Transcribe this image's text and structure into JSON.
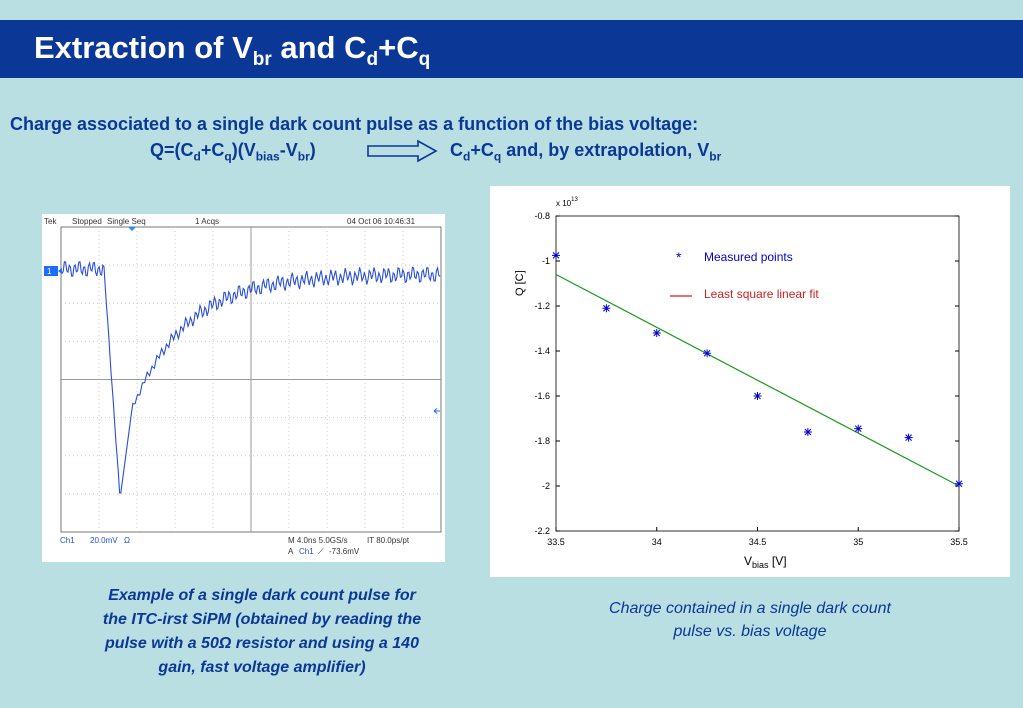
{
  "title": {
    "main": "Extraction of V",
    "sub1": "br",
    "mid": " and C",
    "sub2": "d",
    "plus": "+C",
    "sub3": "q"
  },
  "description": {
    "line1": "Charge associated to a single dark count pulse as a function of the bias voltage:",
    "eq_a": "Q=(C",
    "eq_d": "d",
    "eq_b": "+C",
    "eq_q": "q",
    "eq_c": ")(V",
    "eq_bias": "bias",
    "eq_e": "-V",
    "eq_br": "br",
    "eq_f": ")",
    "res_a": "C",
    "res_d": "d",
    "res_b": "+C",
    "res_q": "q",
    "res_c": " and, by extrapolation, V",
    "res_br": "br"
  },
  "scope": {
    "header_brand": "Tek",
    "header_status": "Stopped",
    "header_mode": "Single Seq",
    "header_acqs": "1 Acqs",
    "header_date": "04 Oct 06 10:46:31",
    "channel_marker": "1",
    "footer_ch": "Ch1",
    "footer_scale": "20.0mV",
    "footer_ohm": "Ω",
    "footer_time": "M 4.0ns 5.0GS/s",
    "footer_pt": "IT 80.0ps/pt",
    "footer_a": "A",
    "footer_ach": "Ch1",
    "footer_slope": "⟋",
    "footer_level": "-73.6mV"
  },
  "caption_left": [
    "Example of a single dark count pulse for",
    "the ITC-irst SiPM (obtained by reading the",
    "pulse with a 50Ω resistor and using a 140",
    "gain, fast voltage amplifier)"
  ],
  "caption_right": [
    "Charge contained in a single dark count",
    "pulse vs. bias voltage"
  ],
  "colors": {
    "accent": "#0b3797",
    "background": "#b9dfe3",
    "points": "#0000cc",
    "fit": "#1a9a1a",
    "legend_fit": "#cc2222"
  },
  "chart_data": {
    "type": "scatter",
    "xlabel_main": "V",
    "xlabel_sub": "bias",
    "xlabel_unit": " [V]",
    "ylabel": "Q [C]",
    "exponent": "13",
    "exponent_prefix": "x 10",
    "xlim": [
      33.5,
      35.5
    ],
    "ylim": [
      -2.2,
      -0.8
    ],
    "xticks": [
      33.5,
      34,
      34.5,
      35,
      35.5
    ],
    "xtick_labels": [
      "33.5",
      "34",
      "34.5",
      "35",
      "35.5"
    ],
    "yticks": [
      -0.8,
      -1,
      -1.2,
      -1.4,
      -1.6,
      -1.8,
      -2,
      -2.2
    ],
    "ytick_labels": [
      "-0.8",
      "-1",
      "-1.2",
      "-1.4",
      "-1.6",
      "-1.8",
      "-2",
      "-2.2"
    ],
    "series": [
      {
        "name": "Measured points",
        "type": "scatter",
        "x": [
          33.5,
          33.75,
          34.0,
          34.25,
          34.5,
          34.75,
          35.0,
          35.25,
          35.5
        ],
        "y": [
          -0.975,
          -1.21,
          -1.32,
          -1.41,
          -1.6,
          -1.76,
          -1.745,
          -1.785,
          -1.99
        ]
      },
      {
        "name": "Least square linear fit",
        "type": "line",
        "x": [
          33.5,
          35.5
        ],
        "y": [
          -1.06,
          -2.0
        ]
      }
    ],
    "legend_position": "top-right"
  }
}
